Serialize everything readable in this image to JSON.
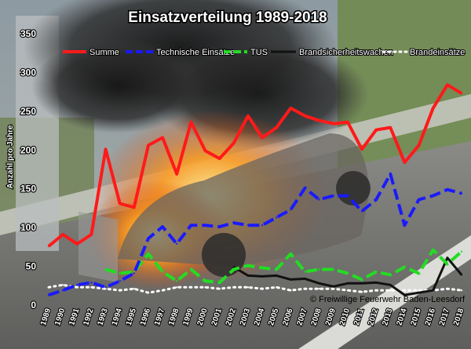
{
  "chart_data": {
    "type": "line",
    "title": "Einsatzverteilung 1989-2018",
    "ylabel": "Anzahl pro Jahre",
    "xlabel": "",
    "ylim": [
      0,
      350
    ],
    "yticks": [
      0,
      50,
      100,
      150,
      200,
      250,
      300,
      350
    ],
    "grid": false,
    "legend_position": "top",
    "credit": "© Freiwillige Feuerwehr Baden-Leesdorf",
    "categories": [
      "1989",
      "1990",
      "1991",
      "1992",
      "1993",
      "1994",
      "1995",
      "1996",
      "1997",
      "1998",
      "1999",
      "2000",
      "2001",
      "2002",
      "2003",
      "2004",
      "2005",
      "2006",
      "2007",
      "2008",
      "2009",
      "2010",
      "2011",
      "2012",
      "2013",
      "2014",
      "2015",
      "2016",
      "2017",
      "2018"
    ],
    "series": [
      {
        "name": "Summe",
        "color": "#ff1a1a",
        "dash": "solid",
        "values": [
          75,
          90,
          78,
          90,
          200,
          130,
          125,
          205,
          215,
          168,
          235,
          198,
          188,
          208,
          243,
          215,
          228,
          253,
          243,
          237,
          233,
          235,
          200,
          225,
          228,
          183,
          205,
          253,
          283,
          272
        ]
      },
      {
        "name": "Technische Einsätze",
        "color": "#1a1aff",
        "dash": "dashed",
        "values": [
          12,
          18,
          25,
          28,
          22,
          30,
          40,
          85,
          100,
          78,
          102,
          102,
          100,
          105,
          102,
          102,
          112,
          122,
          150,
          135,
          140,
          140,
          120,
          135,
          168,
          102,
          135,
          140,
          148,
          143
        ]
      },
      {
        "name": "TUS",
        "color": "#22dd22",
        "dash": "dashed",
        "values": [
          null,
          null,
          null,
          null,
          45,
          40,
          42,
          65,
          42,
          30,
          45,
          30,
          28,
          45,
          50,
          47,
          45,
          65,
          42,
          45,
          45,
          40,
          32,
          42,
          38,
          48,
          40,
          70,
          52,
          68
        ]
      },
      {
        "name": "Brandsicherheitswachen",
        "color": "#111111",
        "dash": "solid",
        "values": [
          null,
          null,
          null,
          null,
          null,
          null,
          null,
          null,
          null,
          null,
          null,
          null,
          null,
          48,
          37,
          36,
          37,
          32,
          33,
          27,
          23,
          27,
          27,
          28,
          25,
          12,
          15,
          18,
          60,
          38
        ]
      },
      {
        "name": "Brandeinsätze",
        "color": "#ffffff",
        "dash": "dotted",
        "values": [
          22,
          25,
          22,
          22,
          20,
          18,
          20,
          15,
          18,
          22,
          22,
          22,
          20,
          22,
          22,
          20,
          22,
          18,
          20,
          20,
          20,
          18,
          16,
          18,
          18,
          18,
          18,
          18,
          20,
          18
        ]
      }
    ]
  }
}
